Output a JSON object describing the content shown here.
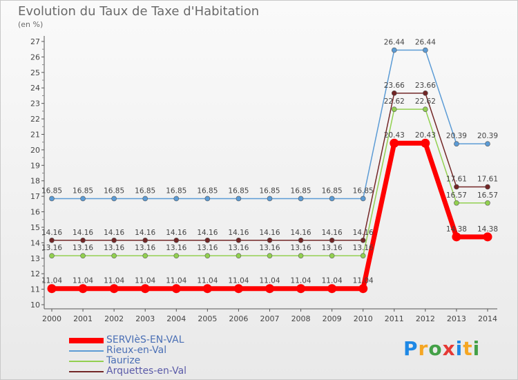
{
  "chart_data": {
    "type": "line",
    "title": "Evolution du Taux de Taxe d'Habitation",
    "unit_label": "(en %)",
    "x": [
      "2000",
      "2001",
      "2002",
      "2003",
      "2004",
      "2005",
      "2006",
      "2007",
      "2008",
      "2009",
      "2010",
      "2011",
      "2012",
      "2013",
      "2014"
    ],
    "y_ticks": [
      "10",
      "11",
      "12",
      "13",
      "14",
      "15",
      "16",
      "17",
      "18",
      "19",
      "20",
      "21",
      "22",
      "23",
      "24",
      "25",
      "26",
      "27"
    ],
    "ylim": [
      10,
      27
    ],
    "grid": false,
    "legend_position": "bottom-left",
    "series": [
      {
        "name": "SERVIèS-EN-VAL",
        "color": "#ff0000",
        "values": [
          11.04,
          11.04,
          11.04,
          11.04,
          11.04,
          11.04,
          11.04,
          11.04,
          11.04,
          11.04,
          11.04,
          20.43,
          20.43,
          14.38,
          14.38
        ],
        "labels": [
          "11.04",
          "11.04",
          "11.04",
          "11.04",
          "11.04",
          "11.04",
          "11.04",
          "11.04",
          "11.04",
          "11.04",
          "11.04",
          "20.43",
          "20.43",
          "14.38",
          "14.38"
        ]
      },
      {
        "name": "Rieux-en-Val",
        "color": "#5b9bd5",
        "values": [
          16.85,
          16.85,
          16.85,
          16.85,
          16.85,
          16.85,
          16.85,
          16.85,
          16.85,
          16.85,
          16.85,
          26.44,
          26.44,
          20.39,
          20.39
        ],
        "labels": [
          "16.85",
          "16.85",
          "16.85",
          "16.85",
          "16.85",
          "16.85",
          "16.85",
          "16.85",
          "16.85",
          "16.85",
          "16.85",
          "26.44",
          "26.44",
          "20.39",
          "20.39"
        ]
      },
      {
        "name": "Taurize",
        "color": "#92d050",
        "values": [
          13.16,
          13.16,
          13.16,
          13.16,
          13.16,
          13.16,
          13.16,
          13.16,
          13.16,
          13.16,
          13.16,
          22.62,
          22.62,
          16.57,
          16.57
        ],
        "labels": [
          "13.16",
          "13.16",
          "13.16",
          "13.16",
          "13.16",
          "13.16",
          "13.16",
          "13.16",
          "13.16",
          "13.16",
          "13.16",
          "22.62",
          "22.62",
          "16.57",
          "16.57"
        ]
      },
      {
        "name": "Arquettes-en-Val",
        "color": "#722626",
        "values": [
          14.16,
          14.16,
          14.16,
          14.16,
          14.16,
          14.16,
          14.16,
          14.16,
          14.16,
          14.16,
          14.16,
          23.66,
          23.66,
          17.61,
          17.61
        ],
        "labels": [
          "14.16",
          "14.16",
          "14.16",
          "14.16",
          "14.16",
          "14.16",
          "14.16",
          "14.16",
          "14.16",
          "14.16",
          "14.16",
          "23.66",
          "23.66",
          "17.61",
          "17.61"
        ]
      }
    ]
  },
  "brand": {
    "logo_letters": [
      "P",
      "r",
      "o",
      "x",
      "i",
      "t",
      "i"
    ],
    "logo_colors": [
      "#1e88e5",
      "#f5a623",
      "#43a047",
      "#e53935",
      "#1e88e5",
      "#f5a623",
      "#43a047"
    ]
  }
}
